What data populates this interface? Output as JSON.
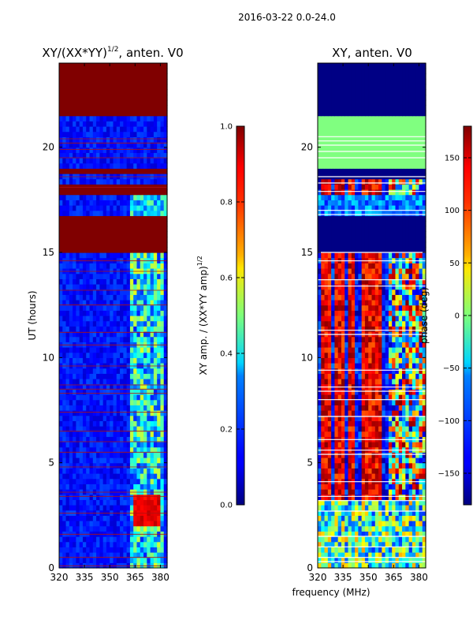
{
  "figure": {
    "suptitle": "2016-03-22 0.0-24.0",
    "shared_xlabel": "frequency (MHz)"
  },
  "chart_data": [
    {
      "type": "heatmap",
      "title": "XY/(XX*YY)",
      "title_sup": "1/2",
      "title_tail": ", anten. V0",
      "xlabel": "",
      "ylabel": "UT (hours)",
      "xlim": [
        320,
        384
      ],
      "ylim": [
        0,
        24
      ],
      "xticks": [
        "320",
        "335",
        "350",
        "365",
        "380"
      ],
      "xtick_values": [
        320,
        335,
        350,
        365,
        380
      ],
      "yticks": [
        "0",
        "5",
        "10",
        "15",
        "20"
      ],
      "ytick_values": [
        0,
        5,
        10,
        15,
        20
      ],
      "colorbar": {
        "label": "XY amp. / (XX*YY amp)",
        "label_sup": "1/2",
        "range": [
          0.0,
          1.0
        ],
        "ticks": [
          "0.0",
          "0.2",
          "0.4",
          "0.6",
          "0.8",
          "1.0"
        ],
        "tick_values": [
          0.0,
          0.2,
          0.4,
          0.6,
          0.8,
          1.0
        ]
      },
      "bands": [
        {
          "t0": 21.6,
          "t1": 24.0,
          "value": 1.0
        },
        {
          "t0": 19.1,
          "t1": 21.6,
          "value": 0.05
        },
        {
          "t0": 18.8,
          "t1": 19.1,
          "value": 1.0
        },
        {
          "t0": 18.2,
          "t1": 18.8,
          "value": 0.05
        },
        {
          "t0": 17.8,
          "t1": 18.2,
          "value": 1.0
        },
        {
          "t0": 16.7,
          "t1": 17.8,
          "value": 0.08
        },
        {
          "t0": 15.1,
          "t1": 16.7,
          "value": 1.0
        },
        {
          "t0": 0.0,
          "t1": 15.1,
          "value": 0.1
        }
      ],
      "red_lines_hours": [
        20.4,
        20.2,
        19.9,
        19.5,
        18.6,
        18.1,
        14.6,
        14.1,
        13.2,
        12.5,
        11.2,
        10.6,
        9.6,
        8.7,
        8.5,
        8.3,
        7.4,
        6.5,
        6.0,
        5.5,
        4.8,
        3.6,
        3.4,
        2.6,
        1.6,
        0.5,
        0.1
      ],
      "hot_region": {
        "f0": 363,
        "f1": 381,
        "t0": 2.0,
        "t1": 3.4,
        "value": 0.95
      }
    },
    {
      "type": "heatmap",
      "title": "XY, anten. V0",
      "xlabel": "frequency (MHz)",
      "ylabel": "",
      "xlim": [
        320,
        384
      ],
      "ylim": [
        0,
        24
      ],
      "xticks": [
        "320",
        "335",
        "350",
        "365",
        "380"
      ],
      "xtick_values": [
        320,
        335,
        350,
        365,
        380
      ],
      "yticks": [
        "0",
        "5",
        "10",
        "15",
        "20"
      ],
      "ytick_values": [
        0,
        5,
        10,
        15,
        20
      ],
      "colorbar": {
        "label": "phase (deg)",
        "range": [
          -180,
          180
        ],
        "ticks": [
          "−150",
          "−100",
          "−50",
          "0",
          "50",
          "100",
          "150"
        ],
        "tick_values": [
          -150,
          -100,
          -50,
          0,
          50,
          100,
          150
        ]
      },
      "bands": [
        {
          "t0": 21.6,
          "t1": 24.0,
          "value": -178
        },
        {
          "t0": 19.1,
          "t1": 21.6,
          "value": 0
        },
        {
          "t0": 18.5,
          "t1": 19.1,
          "value": -178
        },
        {
          "t0": 16.7,
          "t1": 17.8,
          "value": -120
        },
        {
          "t0": 15.1,
          "t1": 16.7,
          "value": -178
        }
      ],
      "white_lines_hours": [
        20.5,
        20.3,
        20.1,
        19.8,
        19.5,
        18.6,
        18.3,
        17.9,
        17.0,
        16.8,
        15.0,
        14.6,
        13.7,
        13.4,
        11.3,
        11.1,
        9.4,
        8.6,
        8.4,
        8.0,
        7.2,
        6.1,
        5.6,
        5.4,
        4.1,
        3.4,
        3.2,
        2.7,
        1.5,
        1.0,
        0.5,
        0.3
      ],
      "red_stripe_freqs": [
        325,
        333,
        340,
        349,
        355
      ],
      "active_hours": [
        0,
        15.1
      ]
    }
  ]
}
